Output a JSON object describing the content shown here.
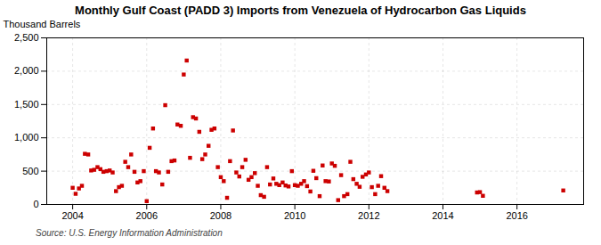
{
  "chart_data": {
    "type": "scatter",
    "title": "Monthly Gulf Coast (PADD 3) Imports from Venezuela of Hydrocarbon Gas Liquids",
    "ylabel": "Thousand Barrels",
    "annotation": "Source: U.S. Energy Information Administration",
    "color": "#cc0000",
    "marker": "square",
    "grid": true,
    "xlim": [
      2003.3,
      2017.8
    ],
    "xticks": [
      2004,
      2006,
      2008,
      2010,
      2012,
      2014,
      2016
    ],
    "ylim": [
      0,
      2500
    ],
    "yticks": [
      0,
      500,
      {
        "value": 1000,
        "label": "1,000"
      },
      {
        "value": 1500,
        "label": "1,500"
      },
      {
        "value": 2000,
        "label": "2,000"
      },
      {
        "value": 2500,
        "label": "2,500"
      }
    ],
    "x": [
      2004.0,
      2004.08,
      2004.17,
      2004.25,
      2004.33,
      2004.42,
      2004.5,
      2004.58,
      2004.67,
      2004.75,
      2004.83,
      2004.92,
      2005.0,
      2005.08,
      2005.17,
      2005.25,
      2005.33,
      2005.42,
      2005.5,
      2005.58,
      2005.67,
      2005.75,
      2005.83,
      2005.92,
      2006.0,
      2006.08,
      2006.17,
      2006.25,
      2006.33,
      2006.42,
      2006.5,
      2006.58,
      2006.67,
      2006.75,
      2006.83,
      2006.92,
      2007.0,
      2007.08,
      2007.17,
      2007.25,
      2007.33,
      2007.42,
      2007.5,
      2007.58,
      2007.67,
      2007.75,
      2007.83,
      2007.92,
      2008.0,
      2008.08,
      2008.17,
      2008.25,
      2008.33,
      2008.42,
      2008.5,
      2008.58,
      2008.67,
      2008.75,
      2008.83,
      2008.92,
      2009.0,
      2009.08,
      2009.17,
      2009.25,
      2009.33,
      2009.42,
      2009.5,
      2009.58,
      2009.67,
      2009.75,
      2009.83,
      2009.92,
      2010.0,
      2010.08,
      2010.17,
      2010.25,
      2010.33,
      2010.42,
      2010.5,
      2010.58,
      2010.67,
      2010.75,
      2010.83,
      2010.92,
      2011.0,
      2011.08,
      2011.17,
      2011.25,
      2011.33,
      2011.42,
      2011.5,
      2011.58,
      2011.67,
      2011.75,
      2011.83,
      2011.92,
      2012.0,
      2012.08,
      2012.17,
      2012.25,
      2012.33,
      2012.42,
      2012.5,
      2014.92,
      2015.0,
      2015.08,
      2017.25
    ],
    "values": [
      250,
      160,
      240,
      280,
      760,
      750,
      510,
      520,
      560,
      530,
      490,
      500,
      510,
      480,
      200,
      260,
      280,
      640,
      560,
      750,
      490,
      330,
      350,
      500,
      50,
      850,
      1140,
      500,
      480,
      300,
      1490,
      490,
      650,
      660,
      1200,
      1180,
      1950,
      2160,
      700,
      1310,
      1290,
      1090,
      680,
      750,
      880,
      1120,
      1140,
      560,
      410,
      350,
      100,
      650,
      1110,
      480,
      420,
      560,
      670,
      370,
      410,
      470,
      280,
      140,
      115,
      560,
      300,
      390,
      310,
      290,
      330,
      285,
      270,
      500,
      290,
      280,
      310,
      350,
      275,
      195,
      505,
      395,
      125,
      585,
      350,
      345,
      615,
      580,
      65,
      440,
      125,
      155,
      640,
      380,
      310,
      265,
      415,
      450,
      480,
      260,
      155,
      280,
      425,
      250,
      200,
      180,
      185,
      130,
      210
    ]
  }
}
